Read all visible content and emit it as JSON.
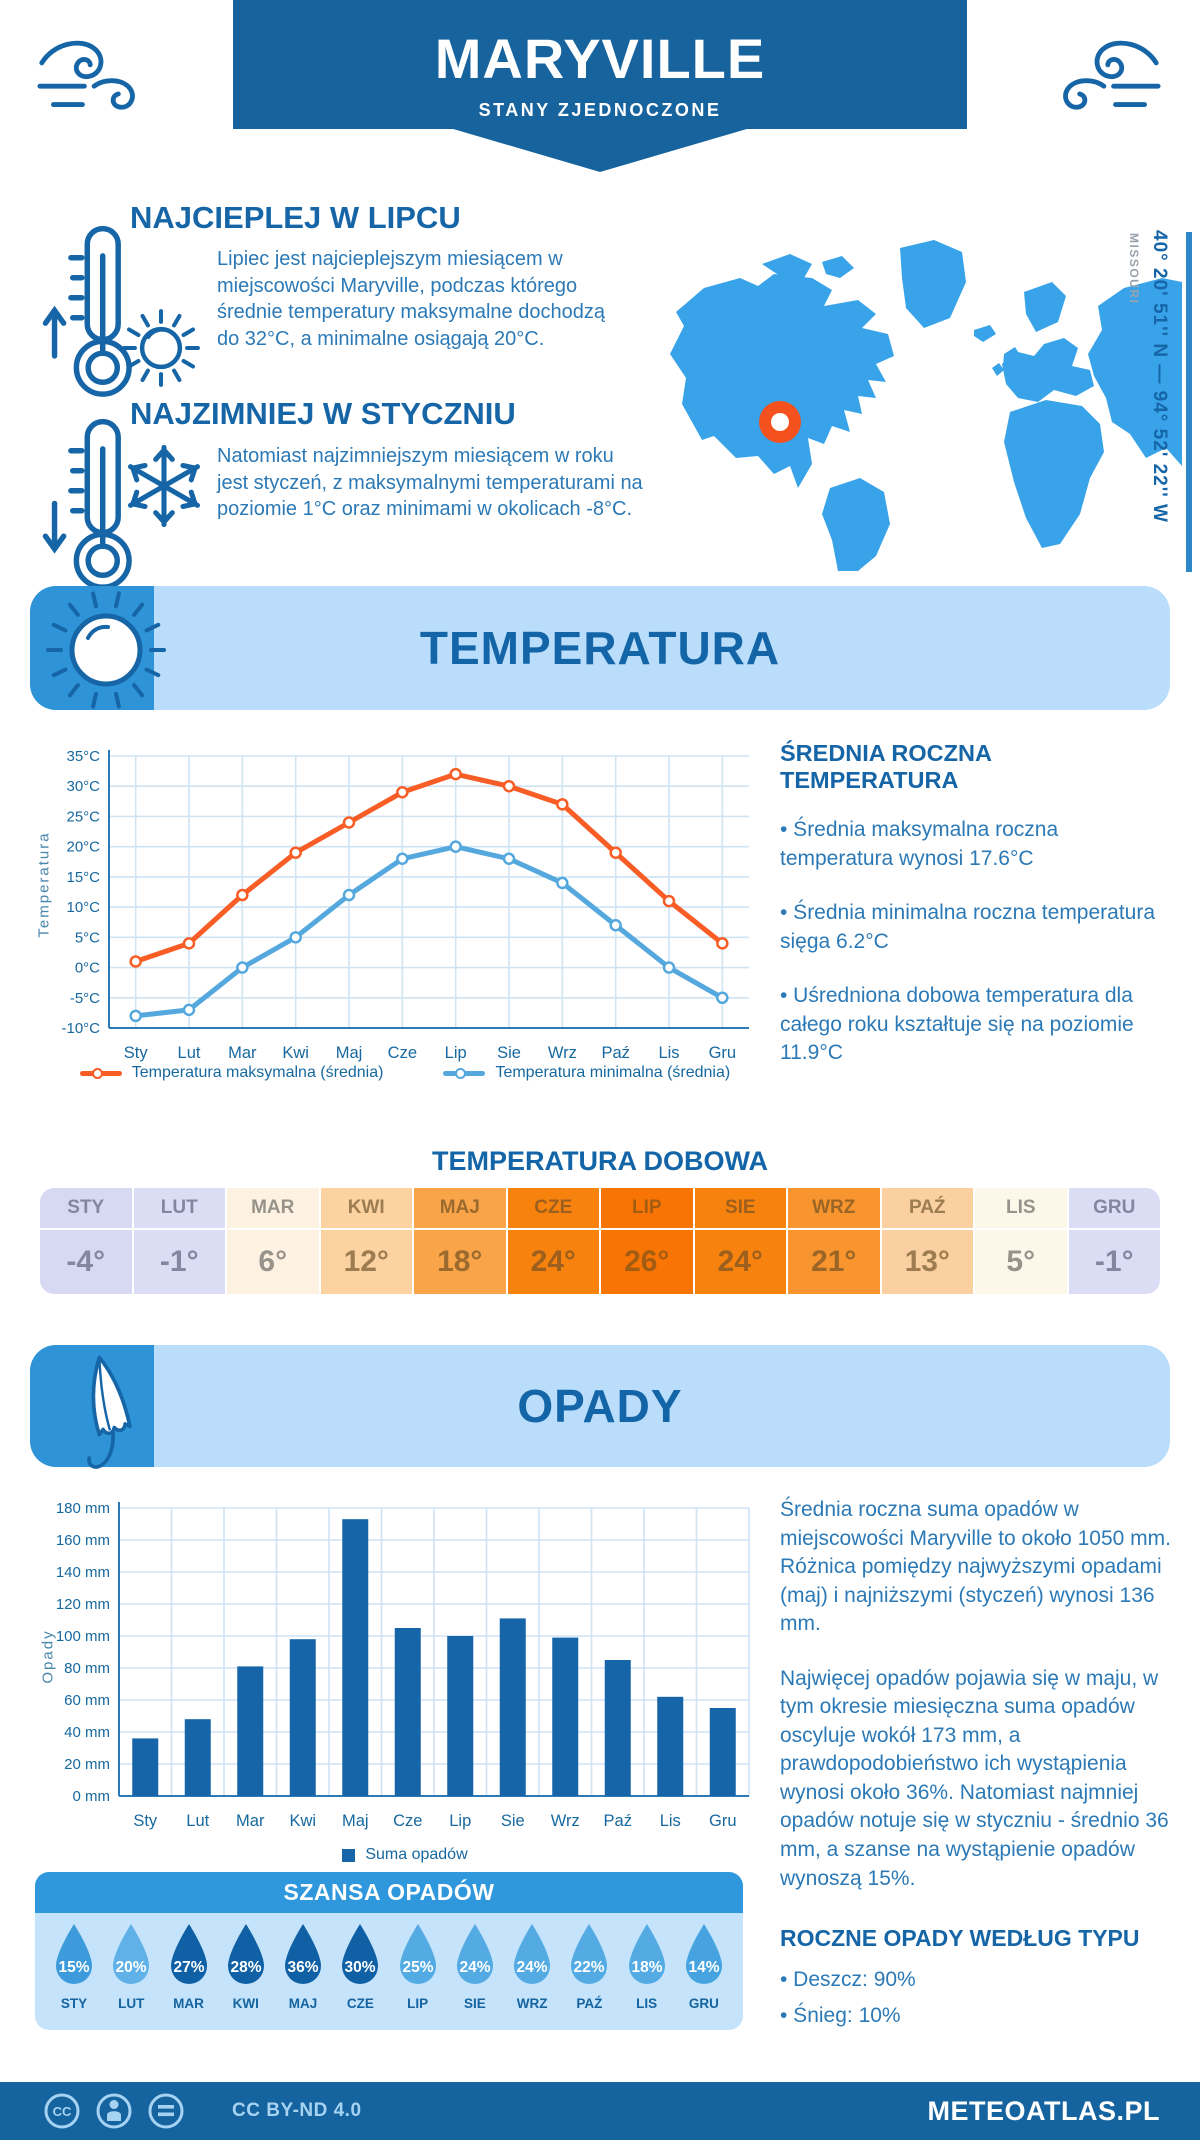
{
  "header": {
    "title": "MARYVILLE",
    "subtitle": "STANY ZJEDNOCZONE"
  },
  "intro": {
    "warm": {
      "heading": "NAJCIEPLEJ W LIPCU",
      "text": "Lipiec jest najcieplejszym miesiącem w miejscowości Maryville, podczas którego średnie temperatury maksymalne dochodzą do 32°C, a minimalne osiągają 20°C."
    },
    "cold": {
      "heading": "NAJZIMNIEJ W STYCZNIU",
      "text": "Natomiast najzimniejszym miesiącem w roku jest styczeń, z maksymalnymi temperaturami na poziomie 1°C oraz minimami w okolicach -8°C."
    },
    "map": {
      "coordinates": "40° 20' 51'' N — 94° 52' 22'' W",
      "region": "MISSOURI"
    }
  },
  "temperature_section": {
    "title": "TEMPERATURA",
    "stats": {
      "heading": "ŚREDNIA ROCZNA TEMPERATURA",
      "bullets": [
        "• Średnia maksymalna roczna temperatura wynosi 17.6°C",
        "• Średnia minimalna roczna temperatura sięga 6.2°C",
        "• Uśredniona dobowa temperatura dla całego roku kształtuje się na poziomie 11.9°C"
      ]
    },
    "daily": {
      "title": "TEMPERATURA DOBOWA",
      "cells": [
        {
          "month": "STY",
          "value": "-4°",
          "bg": "#d7d9f3",
          "fg": "#8486a0"
        },
        {
          "month": "LUT",
          "value": "-1°",
          "bg": "#dbddf5",
          "fg": "#8486a0"
        },
        {
          "month": "MAR",
          "value": "6°",
          "bg": "#fdf2e2",
          "fg": "#97938b"
        },
        {
          "month": "KWI",
          "value": "12°",
          "bg": "#fbd2a0",
          "fg": "#9c7c50"
        },
        {
          "month": "MAJ",
          "value": "18°",
          "bg": "#f9a449",
          "fg": "#9a6a2e"
        },
        {
          "month": "CZE",
          "value": "24°",
          "bg": "#f8820e",
          "fg": "#9d5f1d"
        },
        {
          "month": "LIP",
          "value": "26°",
          "bg": "#f87404",
          "fg": "#a35d12"
        },
        {
          "month": "SIE",
          "value": "24°",
          "bg": "#f8820e",
          "fg": "#9d5f1d"
        },
        {
          "month": "WRZ",
          "value": "21°",
          "bg": "#f9952f",
          "fg": "#9b6525"
        },
        {
          "month": "PAŹ",
          "value": "13°",
          "bg": "#fbd0a0",
          "fg": "#9c7c50"
        },
        {
          "month": "LIS",
          "value": "5°",
          "bg": "#fdf7ea",
          "fg": "#97938b"
        },
        {
          "month": "GRU",
          "value": "-1°",
          "bg": "#dbddf5",
          "fg": "#8486a0"
        }
      ]
    }
  },
  "precipitation_section": {
    "title": "OPADY",
    "paragraphs": [
      "Średnia roczna suma opadów w miejscowości Maryville to około 1050 mm. Różnica pomiędzy najwyższymi opadami (maj) i najniższymi (styczeń) wynosi 136 mm.",
      "Najwięcej opadów pojawia się w maju, w tym okresie miesięczna suma opadów oscyluje wokół 173 mm, a prawdopodobieństwo ich wystąpienia wynosi około 36%. Natomiast najmniej opadów notuje się w styczniu - średnio 36 mm, a szanse na wystąpienie opadów wynoszą 15%."
    ],
    "type_heading": "ROCZNE OPADY WEDŁUG TYPU",
    "type_bullets": [
      "• Deszcz: 90%",
      "• Śnieg: 10%"
    ],
    "chance": {
      "title": "SZANSA OPADÓW",
      "items": [
        {
          "month": "STY",
          "percent": "15%",
          "color": "#3d9bdc"
        },
        {
          "month": "LUT",
          "percent": "20%",
          "color": "#5fb1e8"
        },
        {
          "month": "MAR",
          "percent": "27%",
          "color": "#1060a5"
        },
        {
          "month": "KWI",
          "percent": "28%",
          "color": "#1060a5"
        },
        {
          "month": "MAJ",
          "percent": "36%",
          "color": "#1060a5"
        },
        {
          "month": "CZE",
          "percent": "30%",
          "color": "#1060a5"
        },
        {
          "month": "LIP",
          "percent": "25%",
          "color": "#54abe4"
        },
        {
          "month": "SIE",
          "percent": "24%",
          "color": "#54abe4"
        },
        {
          "month": "WRZ",
          "percent": "24%",
          "color": "#54abe4"
        },
        {
          "month": "PAŹ",
          "percent": "22%",
          "color": "#54abe4"
        },
        {
          "month": "LIS",
          "percent": "18%",
          "color": "#54abe4"
        },
        {
          "month": "GRU",
          "percent": "14%",
          "color": "#46a3e0"
        }
      ]
    }
  },
  "chart_data": [
    {
      "type": "line",
      "title": "",
      "categories": [
        "Sty",
        "Lut",
        "Mar",
        "Kwi",
        "Maj",
        "Cze",
        "Lip",
        "Sie",
        "Wrz",
        "Paź",
        "Lis",
        "Gru"
      ],
      "ylabel": "Temperatura",
      "ylim": [
        -10,
        35
      ],
      "ytick_step": 5,
      "ytick_suffix": "°C",
      "grid": true,
      "legend_position": "bottom",
      "series": [
        {
          "name": "Temperatura maksymalna (średnia)",
          "color": "#f75d24",
          "values": [
            1,
            4,
            12,
            19,
            24,
            29,
            32,
            30,
            27,
            19,
            11,
            4
          ]
        },
        {
          "name": "Temperatura minimalna (średnia)",
          "color": "#55a8dd",
          "values": [
            -8,
            -7,
            0,
            5,
            12,
            18,
            20,
            18,
            14,
            7,
            0,
            -5
          ]
        }
      ]
    },
    {
      "type": "bar",
      "title": "",
      "categories": [
        "Sty",
        "Lut",
        "Mar",
        "Kwi",
        "Maj",
        "Cze",
        "Lip",
        "Sie",
        "Wrz",
        "Paź",
        "Lis",
        "Gru"
      ],
      "ylabel": "Opady",
      "ylim": [
        0,
        180
      ],
      "ytick_step": 20,
      "ytick_suffix": " mm",
      "grid": true,
      "legend_position": "bottom",
      "series": [
        {
          "name": "Suma opadów",
          "color": "#1565a8",
          "values": [
            36,
            48,
            81,
            98,
            173,
            105,
            100,
            111,
            99,
            85,
            62,
            55
          ]
        }
      ]
    }
  ],
  "footer": {
    "license": "CC BY-ND 4.0",
    "site": "METEOATLAS.PL"
  },
  "colors": {
    "primary": "#1565a7",
    "body_text": "#2b79b6",
    "banner_light": "#b9ddfa",
    "banner_icon_area": "#2f93d8",
    "map_land": "#38a3e9",
    "marker": "#f4511e",
    "grid": "#cfe3f3",
    "axis": "#2b7ab8",
    "footer": "#15639f"
  }
}
